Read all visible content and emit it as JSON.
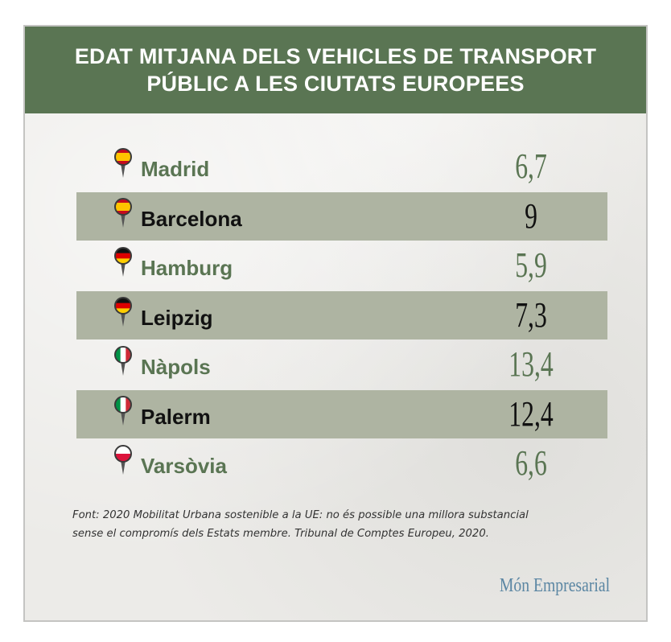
{
  "title_lines": [
    "EDAT MITJANA DELS VEHICLES DE TRANSPORT",
    "PÚBLIC A LES CIUTATS EUROPEES"
  ],
  "source_lines": [
    "Font: 2020 Mobilitat Urbana sostenible a la UE: no és possible una millora substancial",
    "sense el compromís dels Estats membre. Tribunal de Comptes Europeu, 2020."
  ],
  "brand": "Món Empresarial",
  "colors": {
    "header_green": "#5a7553",
    "label_green": "#5a7553",
    "shaded_row": "#aeb4a2",
    "brand_blue": "#5b86a3"
  },
  "chart_data": {
    "type": "table",
    "rows": [
      {
        "city": "Madrid",
        "value": "6,7",
        "flag": "spain"
      },
      {
        "city": "Barcelona",
        "value": "9",
        "flag": "spain"
      },
      {
        "city": "Hamburg",
        "value": "5,9",
        "flag": "germany"
      },
      {
        "city": "Leipzig",
        "value": "7,3",
        "flag": "germany"
      },
      {
        "city": "Nàpols",
        "value": "13,4",
        "flag": "italy"
      },
      {
        "city": "Palerm",
        "value": "12,4",
        "flag": "italy"
      },
      {
        "city": "Varsòvia",
        "value": "6,6",
        "flag": "poland"
      }
    ]
  }
}
